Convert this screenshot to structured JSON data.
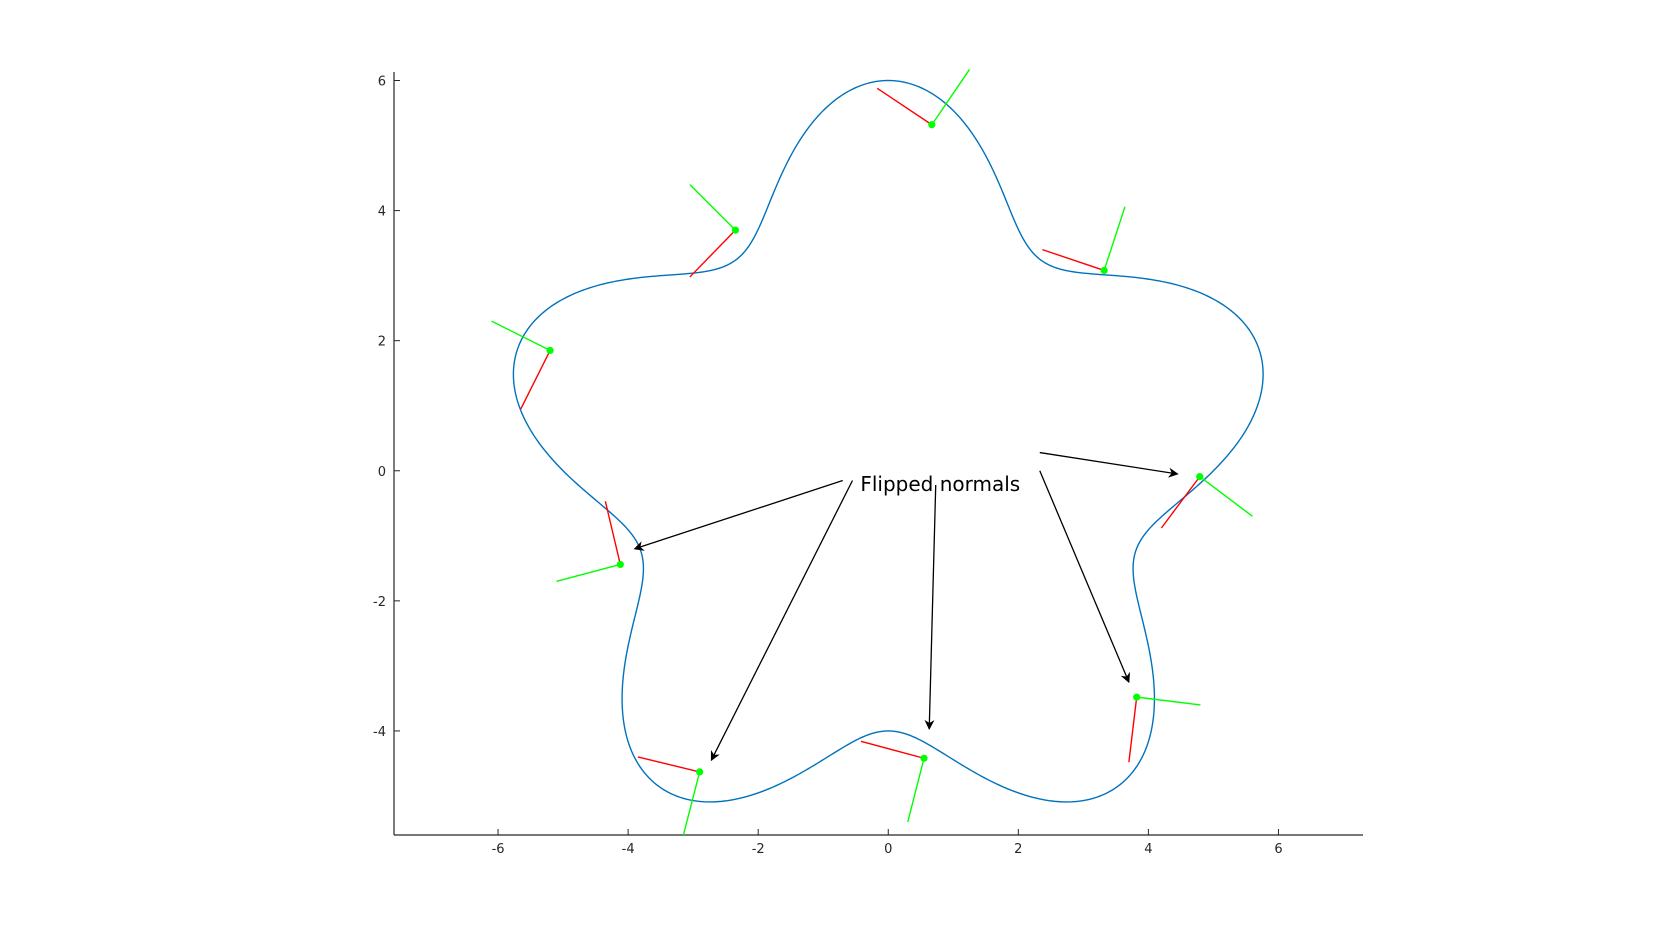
{
  "chart_data": {
    "type": "line",
    "title": "",
    "xlabel": "",
    "ylabel": "",
    "xlim": [
      -7.6,
      7.3
    ],
    "ylim": [
      -5.6,
      6.1
    ],
    "grid": false,
    "x_ticks": [
      -6,
      -4,
      -2,
      0,
      2,
      4,
      6
    ],
    "y_ticks": [
      -4,
      -2,
      0,
      2,
      4,
      6
    ],
    "x_tick_labels": [
      "-6",
      "-4",
      "-2",
      "0",
      "2",
      "4",
      "6"
    ],
    "y_tick_labels": [
      "-4",
      "-2",
      "0",
      "2",
      "4",
      "6"
    ],
    "curve": {
      "description": "closed five-lobed flower curve r(t) = 5 + cos(5t), in polar form",
      "base_radius": 5,
      "amplitude": 1,
      "petals": 5,
      "color": "#0072BD"
    },
    "sample_points": [
      {
        "x": 0.67,
        "y": 5.32,
        "tangent_end": [
          -0.17,
          5.88
        ],
        "normal_end": [
          1.25,
          6.17
        ],
        "flipped": false
      },
      {
        "x": 3.32,
        "y": 3.08,
        "tangent_end": [
          2.37,
          3.4
        ],
        "normal_end": [
          3.64,
          4.06
        ],
        "flipped": false
      },
      {
        "x": 4.79,
        "y": -0.09,
        "tangent_end": [
          4.2,
          -0.88
        ],
        "normal_end": [
          5.6,
          -0.7
        ],
        "flipped": true
      },
      {
        "x": 3.82,
        "y": -3.48,
        "tangent_end": [
          3.7,
          -4.48
        ],
        "normal_end": [
          4.8,
          -3.6
        ],
        "flipped": true
      },
      {
        "x": 0.55,
        "y": -4.42,
        "tangent_end": [
          -0.42,
          -4.16
        ],
        "normal_end": [
          0.3,
          -5.4
        ],
        "flipped": true
      },
      {
        "x": -2.9,
        "y": -4.63,
        "tangent_end": [
          -3.85,
          -4.4
        ],
        "normal_end": [
          -3.15,
          -5.6
        ],
        "flipped": true
      },
      {
        "x": -4.12,
        "y": -1.44,
        "tangent_end": [
          -4.35,
          -0.47
        ],
        "normal_end": [
          -5.1,
          -1.7
        ],
        "flipped": true
      },
      {
        "x": -5.2,
        "y": 1.85,
        "tangent_end": [
          -5.65,
          0.95
        ],
        "normal_end": [
          -6.1,
          2.3
        ],
        "flipped": false
      },
      {
        "x": -2.35,
        "y": 3.7,
        "tangent_end": [
          -3.05,
          2.98
        ],
        "normal_end": [
          -3.05,
          4.4
        ],
        "flipped": false
      }
    ],
    "series": [
      {
        "name": "",
        "color": "#0072BD"
      },
      {
        "name": "",
        "color": "#FF0000"
      },
      {
        "name": "",
        "color": "#00FF00"
      }
    ],
    "annotation": {
      "text": "Flipped normals",
      "anchor": [
        0.8,
        -0.2
      ],
      "arrows": [
        {
          "from": [
            -0.7,
            -0.15
          ],
          "to": [
            -3.9,
            -1.2
          ]
        },
        {
          "from": [
            -0.55,
            -0.15
          ],
          "to": [
            -2.72,
            -4.45
          ]
        },
        {
          "from": [
            0.73,
            -0.22
          ],
          "to": [
            0.63,
            -3.97
          ]
        },
        {
          "from": [
            2.33,
            0.28
          ],
          "to": [
            4.45,
            -0.05
          ]
        },
        {
          "from": [
            2.33,
            0.0
          ],
          "to": [
            3.7,
            -3.25
          ]
        }
      ]
    }
  }
}
